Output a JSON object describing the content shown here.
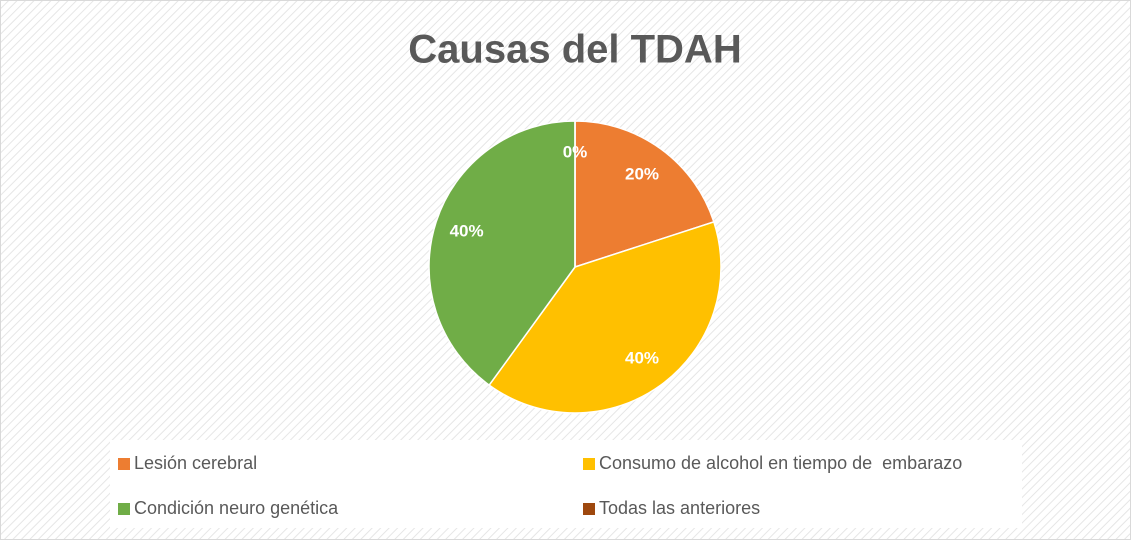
{
  "chart_data": {
    "type": "pie",
    "title": "Causas del TDAH",
    "categories": [
      "Lesión cerebral",
      "Consumo de alcohol en tiempo de  embarazo",
      "Condición neuro genética",
      "Todas las anteriores"
    ],
    "values": [
      20,
      40,
      40,
      0
    ],
    "value_labels": [
      "20%",
      "40%",
      "40%",
      "0%"
    ],
    "colors": [
      "#ed7d31",
      "#ffc000",
      "#70ad47",
      "#9e480e"
    ],
    "legend": "bottom"
  }
}
